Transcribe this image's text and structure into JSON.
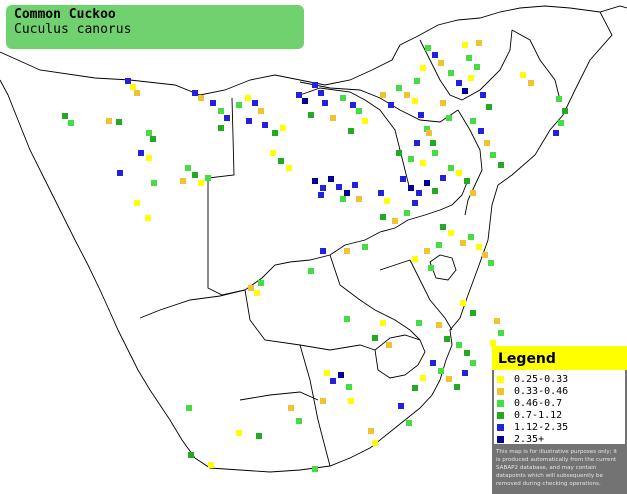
{
  "title": {
    "common_name": "Common Cuckoo",
    "scientific_name": "Cuculus canorus"
  },
  "colors": {
    "title_bg": "#6fd26f",
    "legend_header_bg": "#ffff00",
    "legend_panel_bg": "#737373",
    "outline": "#000000"
  },
  "legend": {
    "title": "Legend",
    "items": [
      {
        "label": "0.25-0.33",
        "color": "#ffff00"
      },
      {
        "label": "0.33-0.46",
        "color": "#f2c230"
      },
      {
        "label": "0.46-0.7",
        "color": "#44dd44"
      },
      {
        "label": "0.7-1.12",
        "color": "#22aa22"
      },
      {
        "label": "1.12-2.35",
        "color": "#2222dd"
      },
      {
        "label": "2.35+",
        "color": "#000099"
      }
    ],
    "note": "This map is for illustrative purposes only; it is produced automatically from the current SABAP2 database, and may contain datapoints which will subsequently be removed during checking operations."
  }
}
